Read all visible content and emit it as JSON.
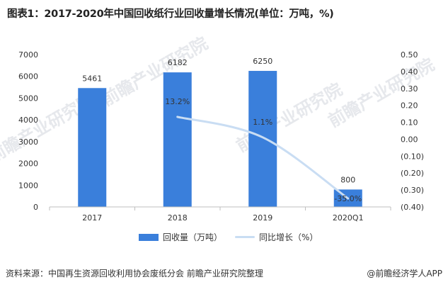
{
  "title": "图表1：2017-2020年中国回收纸行业回收量增长情况(单位：万吨，%)",
  "chart_data": {
    "type": "bar",
    "categories": [
      "2017",
      "2018",
      "2019",
      "2020Q1"
    ],
    "series": [
      {
        "name": "回收量（万吨）",
        "type": "bar",
        "axis": "left",
        "values": [
          5461,
          6182,
          6250,
          800
        ],
        "labels": [
          "5461",
          "6182",
          "6250",
          "800"
        ]
      },
      {
        "name": "同比增长（%）",
        "type": "line",
        "axis": "right",
        "values": [
          null,
          0.132,
          0.011,
          -0.35
        ],
        "labels": [
          "",
          "13.2%",
          "1.1%",
          "-35.0%"
        ]
      }
    ],
    "left_axis": {
      "min": 0,
      "max": 7000,
      "ticks": [
        "0",
        "1000",
        "2000",
        "3000",
        "4000",
        "5000",
        "6000",
        "7000"
      ]
    },
    "right_axis": {
      "min": -0.4,
      "max": 0.5,
      "ticks": [
        "(0.40)",
        "(0.30)",
        "(0.20)",
        "(0.10)",
        "0.00",
        "0.10",
        "0.20",
        "0.30",
        "0.40",
        "0.50"
      ]
    },
    "grid": false,
    "legend_position": "bottom",
    "colors": {
      "bar": "#3a7fdb",
      "line": "#c9ddf3"
    }
  },
  "legend": {
    "bar_label": "回收量（万吨）",
    "line_label": "同比增长（%）"
  },
  "footer": {
    "source": "资料来源：中国再生资源回收利用协会废纸分会 前瞻产业研究院整理",
    "brand": "@前瞻经济学人APP"
  },
  "watermark": {
    "text": "前瞻产业研究院"
  }
}
